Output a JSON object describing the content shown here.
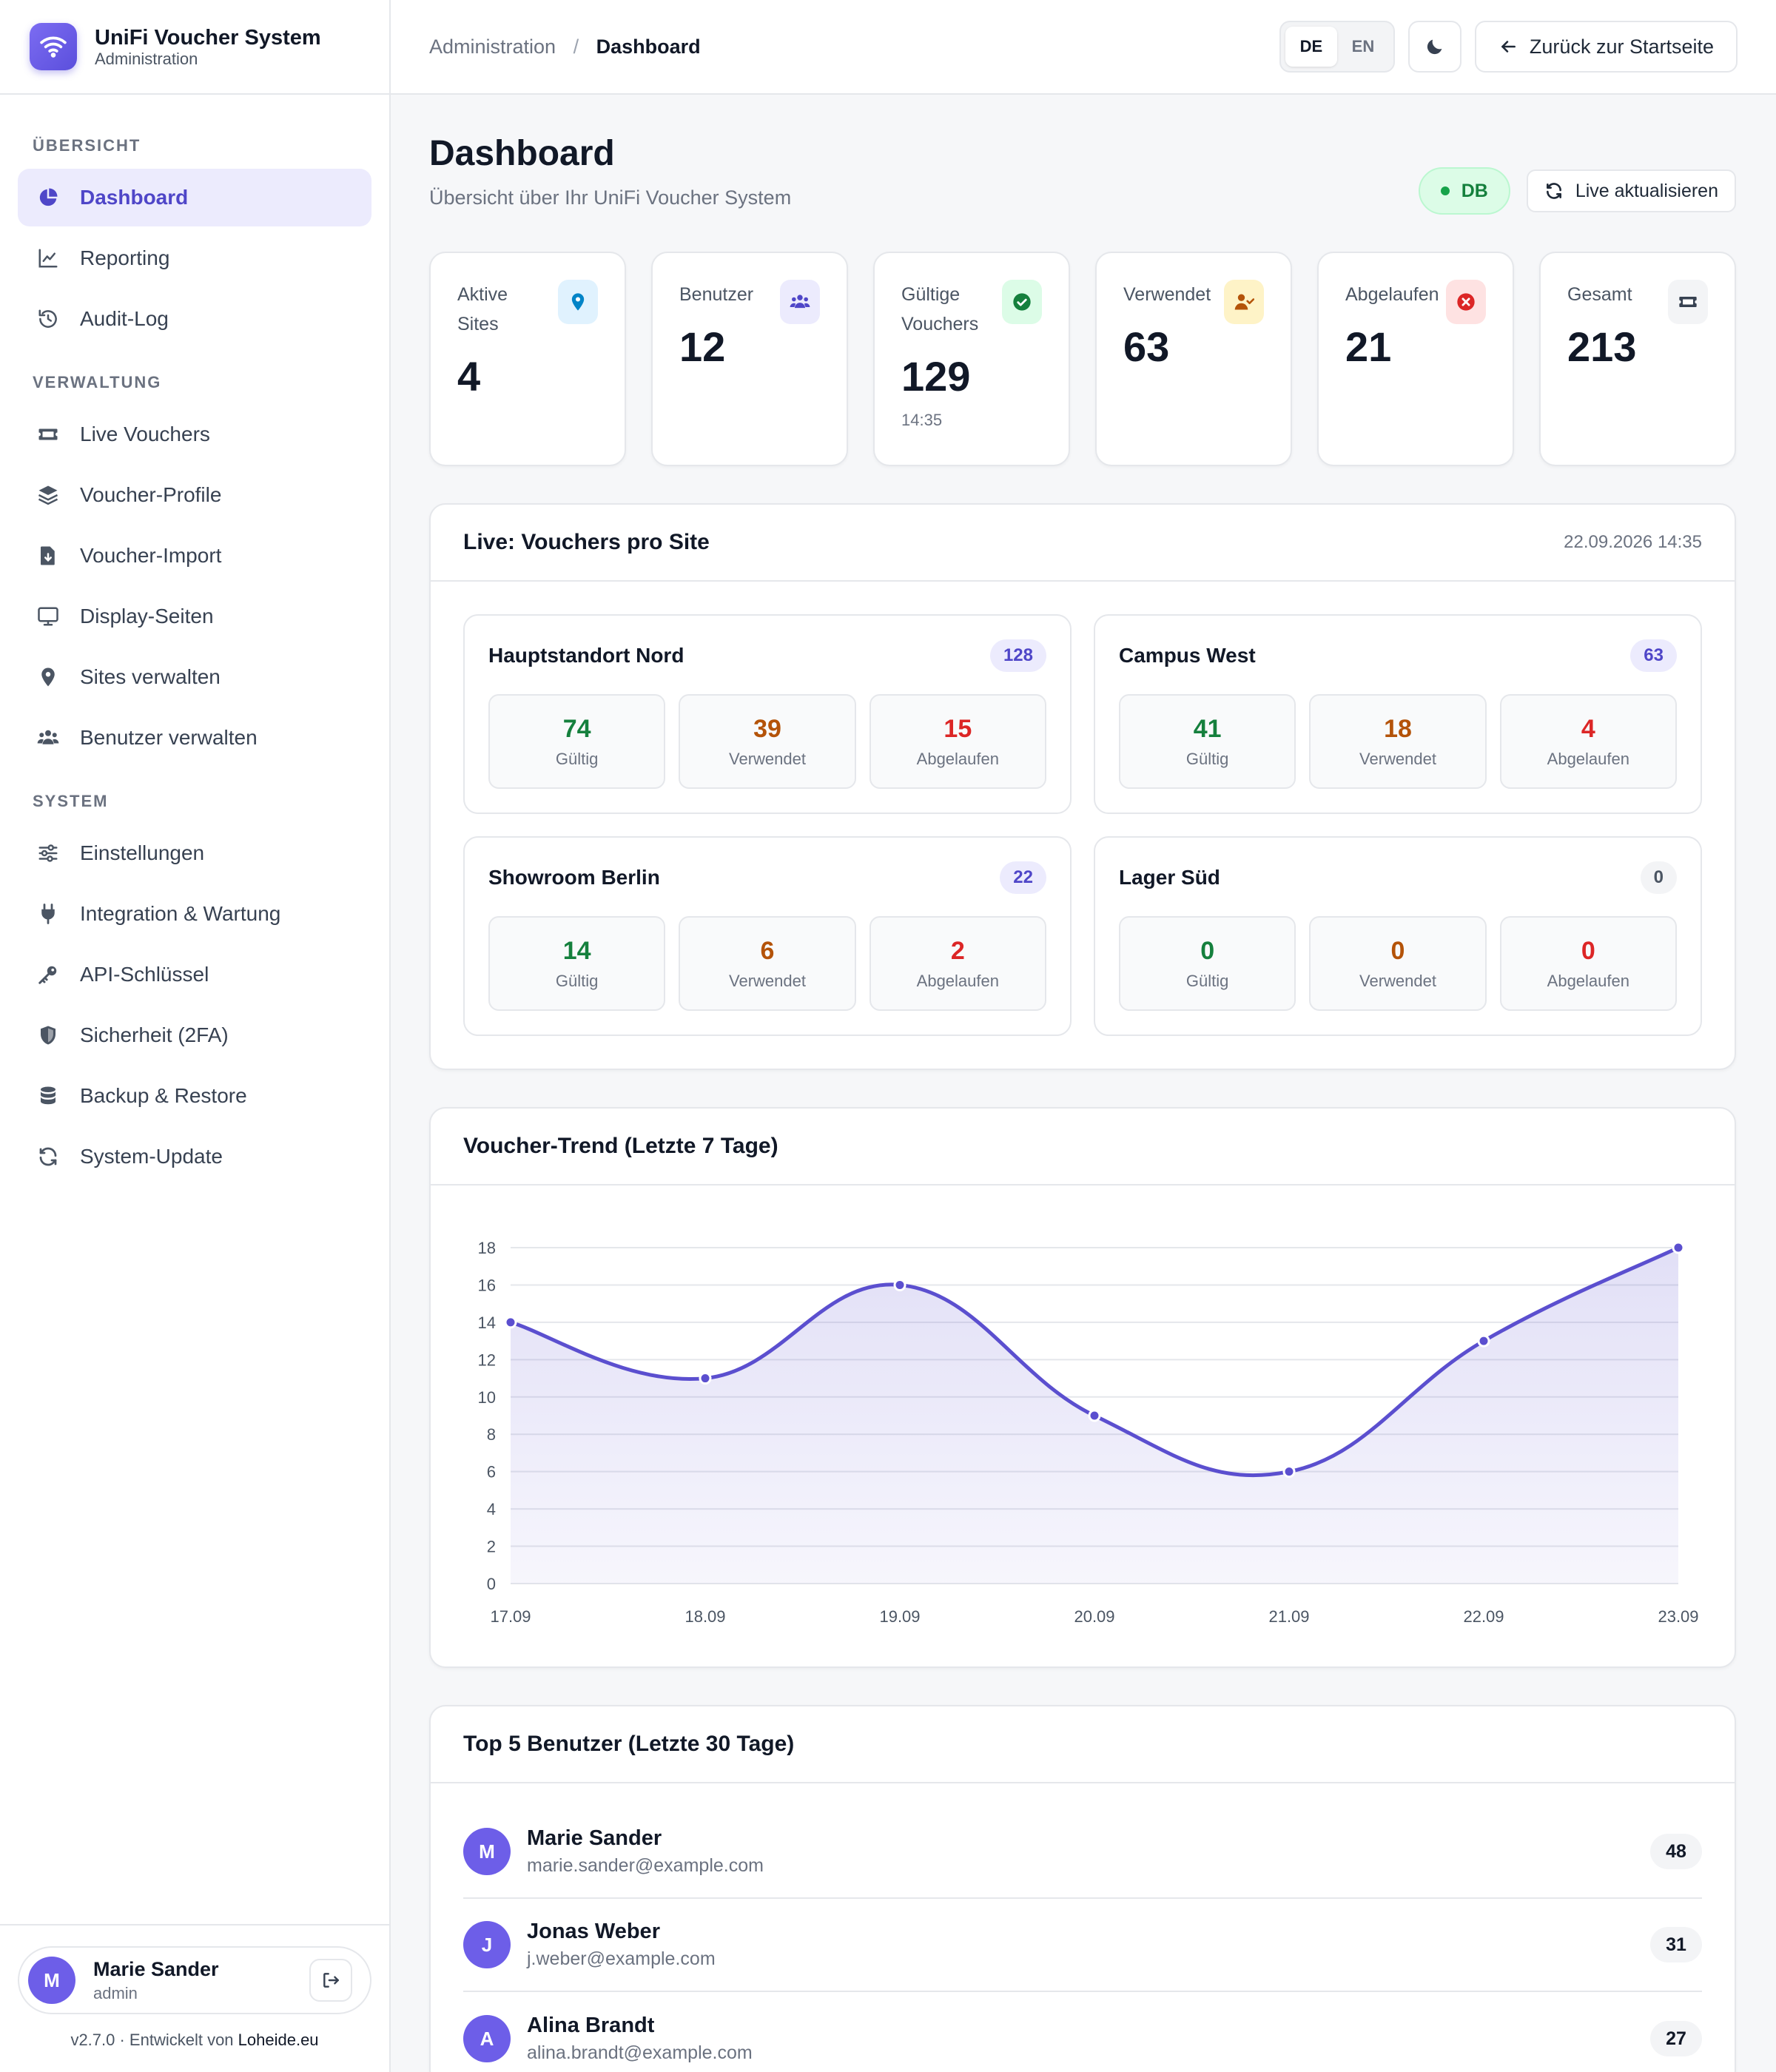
{
  "brand": {
    "title": "UniFi Voucher System",
    "subtitle": "Administration"
  },
  "nav": {
    "sections": [
      {
        "label": "Übersicht",
        "items": [
          {
            "label": "Dashboard",
            "icon": "pie-chart-icon",
            "active": true
          },
          {
            "label": "Reporting",
            "icon": "line-chart-icon"
          },
          {
            "label": "Audit-Log",
            "icon": "history-icon"
          }
        ]
      },
      {
        "label": "Verwaltung",
        "items": [
          {
            "label": "Live Vouchers",
            "icon": "ticket-icon"
          },
          {
            "label": "Voucher-Profile",
            "icon": "layers-icon"
          },
          {
            "label": "Voucher-Import",
            "icon": "file-import-icon"
          },
          {
            "label": "Display-Seiten",
            "icon": "monitor-icon"
          },
          {
            "label": "Sites verwalten",
            "icon": "map-pin-icon"
          },
          {
            "label": "Benutzer verwalten",
            "icon": "users-icon"
          }
        ]
      },
      {
        "label": "System",
        "items": [
          {
            "label": "Einstellungen",
            "icon": "sliders-icon"
          },
          {
            "label": "Integration & Wartung",
            "icon": "plug-icon"
          },
          {
            "label": "API-Schlüssel",
            "icon": "key-icon"
          },
          {
            "label": "Sicherheit (2FA)",
            "icon": "shield-icon"
          },
          {
            "label": "Backup & Restore",
            "icon": "database-icon"
          },
          {
            "label": "System-Update",
            "icon": "refresh-icon"
          }
        ]
      }
    ]
  },
  "current_user": {
    "initial": "M",
    "name": "Marie Sander",
    "role": "admin"
  },
  "footer": {
    "version": "v2.7.0 · Entwickelt von ",
    "developer": "Loheide.eu"
  },
  "topbar": {
    "breadcrumb_root": "Administration",
    "breadcrumb_sep": "/",
    "breadcrumb_current": "Dashboard",
    "lang_de": "DE",
    "lang_en": "EN",
    "back_label": "Zurück zur Startseite"
  },
  "page": {
    "title": "Dashboard",
    "subtitle": "Übersicht über Ihr UniFi Voucher System",
    "db_badge": "DB",
    "refresh_label": "Live aktualisieren"
  },
  "stats": [
    {
      "label": "Aktive Sites",
      "value": "4",
      "icon": "map-pin-icon",
      "color": "#0284c7",
      "bg": "#e0f2fe"
    },
    {
      "label": "Benutzer",
      "value": "12",
      "icon": "users-icon",
      "color": "#4f46c8",
      "bg": "#ecebfd"
    },
    {
      "label": "Gültige Vouchers",
      "value": "129",
      "meta": "14:35",
      "icon": "check-circle-icon",
      "color": "#15803d",
      "bg": "#dcfce7"
    },
    {
      "label": "Verwendet",
      "value": "63",
      "icon": "user-check-icon",
      "color": "#b45309",
      "bg": "#fef3c7"
    },
    {
      "label": "Abgelaufen",
      "value": "21",
      "icon": "x-circle-icon",
      "color": "#dc2626",
      "bg": "#fee2e2"
    },
    {
      "label": "Gesamt",
      "value": "213",
      "icon": "ticket-icon",
      "color": "#374151",
      "bg": "#f3f4f6"
    }
  ],
  "sites_panel": {
    "title": "Live: Vouchers pro Site",
    "timestamp": "22.09.2026 14:35",
    "labels": {
      "valid": "Gültig",
      "used": "Verwendet",
      "expired": "Abgelaufen"
    },
    "sites": [
      {
        "name": "Hauptstandort Nord",
        "total": "128",
        "valid": "74",
        "used": "39",
        "expired": "15"
      },
      {
        "name": "Campus West",
        "total": "63",
        "valid": "41",
        "used": "18",
        "expired": "4"
      },
      {
        "name": "Showroom Berlin",
        "total": "22",
        "valid": "14",
        "used": "6",
        "expired": "2"
      },
      {
        "name": "Lager Süd",
        "total": "0",
        "valid": "0",
        "used": "0",
        "expired": "0"
      }
    ]
  },
  "trend_panel": {
    "title": "Voucher-Trend (Letzte 7 Tage)"
  },
  "chart_data": {
    "type": "area",
    "categories": [
      "17.09",
      "18.09",
      "19.09",
      "20.09",
      "21.09",
      "22.09",
      "23.09"
    ],
    "values": [
      14,
      11,
      16,
      9,
      6,
      13,
      18
    ],
    "ylim": [
      0,
      18
    ],
    "yticks": [
      0,
      2,
      4,
      6,
      8,
      10,
      12,
      14,
      16,
      18
    ],
    "grid": true,
    "color": "#5b4fcf"
  },
  "top_users": {
    "title": "Top 5 Benutzer (Letzte 30 Tage)",
    "users": [
      {
        "initial": "M",
        "name": "Marie Sander",
        "email": "marie.sander@example.com",
        "count": "48"
      },
      {
        "initial": "J",
        "name": "Jonas Weber",
        "email": "j.weber@example.com",
        "count": "31"
      },
      {
        "initial": "A",
        "name": "Alina Brandt",
        "email": "alina.brandt@example.com",
        "count": "27"
      }
    ]
  }
}
